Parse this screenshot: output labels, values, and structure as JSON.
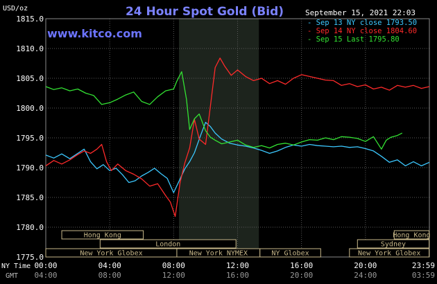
{
  "chart_data": {
    "type": "line",
    "title": "24 Hour Spot Gold (Bid)",
    "units_label": "USD/oz",
    "watermark": "www.kitco.com",
    "timestamp": "September 15, 2021 22:03",
    "ylim": [
      1775.0,
      1815.0
    ],
    "y_ticks": [
      "1815.0",
      "1810.0",
      "1805.0",
      "1800.0",
      "1795.0",
      "1790.0",
      "1785.0",
      "1780.0",
      "1775.0"
    ],
    "y_tick_values": [
      1815,
      1810,
      1805,
      1800,
      1795,
      1790,
      1785,
      1780,
      1775
    ],
    "xlim": [
      0,
      24
    ],
    "x_ticks_ny": [
      "00:00",
      "04:00",
      "08:00",
      "12:00",
      "16:00",
      "20:00",
      "23:59"
    ],
    "x_ticks_gmt": [
      "04:00",
      "08:00",
      "12:00",
      "16:00",
      "20:00",
      "24:00",
      "03:59"
    ],
    "x_tick_hours": [
      0,
      4,
      8,
      12,
      16,
      20,
      23.983
    ],
    "x_axis_label_ny": "NY Time",
    "x_axis_label_gmt": "GMT",
    "shaded_session_hours": [
      8.333,
      13.333
    ],
    "grid": true,
    "legend_position": "top-right",
    "colors": {
      "background": "#000000",
      "grid": "#5a5a5a",
      "title": "#7b82ff",
      "shade": "#1d241d",
      "legend_text": "#ffffff",
      "market_box": "#c8b88a"
    },
    "series": [
      {
        "name": "Sep 13 NY close 1793.50",
        "color": "#3cc8ff",
        "x": [
          0,
          0.5,
          1,
          1.5,
          2,
          2.4,
          2.8,
          3.2,
          3.6,
          4,
          4.4,
          4.8,
          5.2,
          5.6,
          6,
          6.4,
          6.8,
          7.2,
          7.6,
          8,
          8.3,
          8.7,
          9,
          9.3,
          9.7,
          10,
          10.3,
          10.6,
          11,
          11.5,
          12,
          12.5,
          13,
          13.5,
          14,
          14.5,
          15,
          15.5,
          16,
          16.5,
          17,
          17.5,
          18,
          18.5,
          19,
          19.5,
          20,
          20.5,
          21,
          21.5,
          22,
          22.5,
          23,
          23.5,
          24
        ],
        "y": [
          1792.1,
          1791.6,
          1792.3,
          1791.5,
          1792.4,
          1793.1,
          1791.0,
          1789.8,
          1790.5,
          1789.5,
          1789.9,
          1788.8,
          1787.5,
          1787.8,
          1788.6,
          1789.2,
          1789.9,
          1789.0,
          1788.2,
          1785.8,
          1787.5,
          1789.8,
          1791.0,
          1792.5,
          1795.5,
          1797.6,
          1796.9,
          1795.8,
          1794.8,
          1794.1,
          1793.8,
          1793.6,
          1793.3,
          1792.9,
          1792.4,
          1792.8,
          1793.4,
          1793.8,
          1793.6,
          1793.9,
          1793.7,
          1793.6,
          1793.5,
          1793.6,
          1793.4,
          1793.5,
          1793.2,
          1792.8,
          1791.9,
          1790.9,
          1791.3,
          1790.3,
          1791.0,
          1790.3,
          1790.9
        ]
      },
      {
        "name": "Sep 14 NY close 1804.60",
        "color": "#ff2a2a",
        "x": [
          0,
          0.5,
          1,
          1.5,
          2,
          2.4,
          2.8,
          3.2,
          3.5,
          3.8,
          4.1,
          4.5,
          5,
          5.5,
          6,
          6.5,
          7,
          7.5,
          7.8,
          8.1,
          8.4,
          8.7,
          9,
          9.3,
          9.6,
          10,
          10.3,
          10.6,
          10.9,
          11.2,
          11.6,
          12,
          12.5,
          13,
          13.5,
          14,
          14.5,
          15,
          15.5,
          16,
          16.5,
          17,
          17.5,
          18,
          18.5,
          19,
          19.5,
          20,
          20.5,
          21,
          21.5,
          22,
          22.5,
          23,
          23.5,
          24
        ],
        "y": [
          1790.3,
          1791.2,
          1790.6,
          1791.3,
          1792.2,
          1792.8,
          1792.4,
          1793.1,
          1793.9,
          1791.0,
          1789.5,
          1790.6,
          1789.5,
          1788.9,
          1788.1,
          1786.9,
          1787.3,
          1785.3,
          1784.2,
          1781.8,
          1787.5,
          1790.8,
          1793.3,
          1798.1,
          1794.8,
          1793.9,
          1800.3,
          1806.8,
          1808.4,
          1807.0,
          1805.5,
          1806.4,
          1805.3,
          1804.6,
          1805.0,
          1804.1,
          1804.6,
          1804.0,
          1805.0,
          1805.6,
          1805.3,
          1805.0,
          1804.7,
          1804.6,
          1803.8,
          1804.1,
          1803.6,
          1803.9,
          1803.2,
          1803.5,
          1803.0,
          1803.8,
          1803.5,
          1803.8,
          1803.3,
          1803.6
        ]
      },
      {
        "name": "Sep 15 Last 1795.80",
        "color": "#33e333",
        "x": [
          0,
          0.5,
          1,
          1.5,
          2,
          2.5,
          3,
          3.5,
          4,
          4.5,
          5,
          5.5,
          6,
          6.5,
          7,
          7.5,
          8,
          8.2,
          8.5,
          8.8,
          9,
          9.3,
          9.6,
          10,
          10.3,
          10.6,
          11,
          11.5,
          12,
          12.5,
          13,
          13.5,
          14,
          14.5,
          15,
          15.5,
          16,
          16.5,
          17,
          17.5,
          18,
          18.5,
          19,
          19.5,
          20,
          20.5,
          21,
          21.3,
          21.6,
          22,
          22.3
        ],
        "y": [
          1803.6,
          1803.1,
          1803.4,
          1802.9,
          1803.2,
          1802.5,
          1802.1,
          1800.6,
          1800.9,
          1801.5,
          1802.2,
          1802.7,
          1801.1,
          1800.6,
          1801.9,
          1802.9,
          1803.2,
          1804.5,
          1806.1,
          1801.5,
          1796.4,
          1798.2,
          1799.0,
          1796.2,
          1795.1,
          1794.6,
          1794.0,
          1794.3,
          1794.6,
          1793.8,
          1793.4,
          1793.7,
          1793.3,
          1793.9,
          1794.1,
          1793.8,
          1794.3,
          1794.7,
          1794.6,
          1795.0,
          1794.7,
          1795.2,
          1795.1,
          1794.9,
          1794.4,
          1795.2,
          1793.1,
          1794.6,
          1795.1,
          1795.4,
          1795.8
        ]
      }
    ],
    "markets": [
      {
        "label": "Hong Kong",
        "start": 1.0,
        "end": 6.1,
        "row": 0
      },
      {
        "label": "Hong Kong",
        "start": 21.8,
        "end": 23.983,
        "row": 0
      },
      {
        "label": "Sydney",
        "start": 19.5,
        "end": 23.983,
        "row": 1
      },
      {
        "label": "London",
        "start": 3.4,
        "end": 11.9,
        "row": 1
      },
      {
        "label": "New York Globex",
        "start": 0.0,
        "end": 8.2,
        "row": 2
      },
      {
        "label": "New York NYMEX",
        "start": 8.2,
        "end": 13.4,
        "row": 2
      },
      {
        "label": "NY Globex",
        "start": 13.4,
        "end": 17.2,
        "row": 2
      },
      {
        "label": "New York Globex",
        "start": 19.0,
        "end": 23.983,
        "row": 2
      }
    ],
    "market_row_fill": [
      "#000000",
      "#000000",
      "#000000"
    ]
  }
}
